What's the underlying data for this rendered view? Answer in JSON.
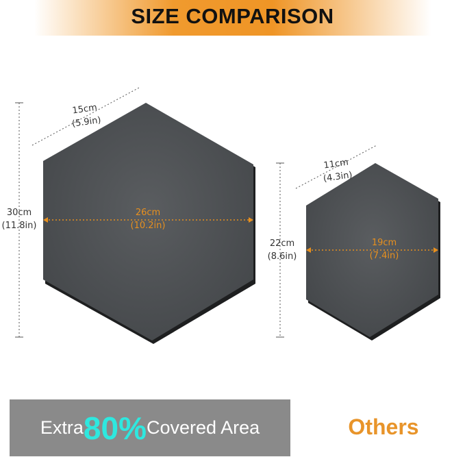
{
  "title": "SIZE COMPARISON",
  "large": {
    "height": [
      "30cm",
      "(11.8in)"
    ],
    "side": [
      "15cm",
      "(5.9in)"
    ],
    "width": [
      "26cm",
      "(10.2in)"
    ]
  },
  "small": {
    "height": [
      "22cm",
      "(8.6in)"
    ],
    "side": [
      "11cm",
      "(4.3in)"
    ],
    "width": [
      "19cm",
      "(7.4in)"
    ]
  },
  "banner": {
    "prefix": "Extra",
    "percent": "80%",
    "suffix": "Covered Area"
  },
  "others": "Others",
  "colors": {
    "accent": "#e8901e",
    "highlight": "#2ee8df",
    "felt": "#4a4d50"
  }
}
